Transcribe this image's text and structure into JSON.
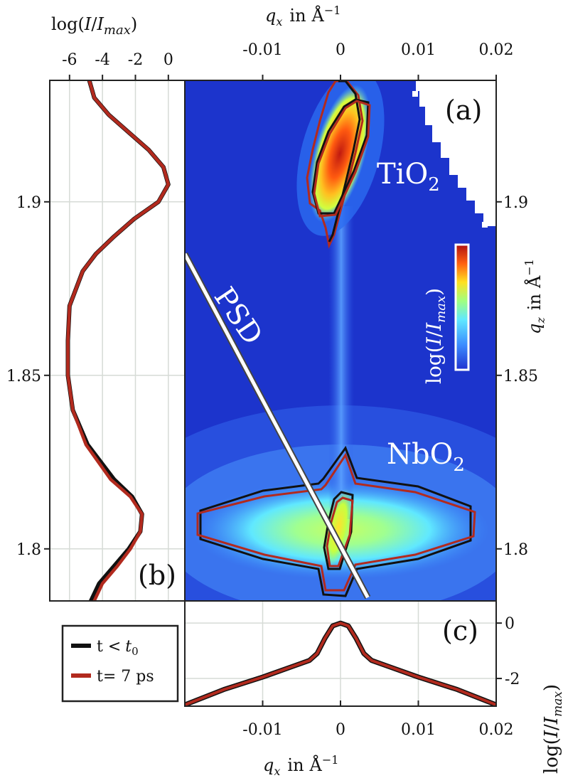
{
  "chart_data": [
    {
      "panel": "(a)",
      "type": "heatmap",
      "description_text": {
        "title_top": "q_x in Å^-1",
        "ylabel_right": "q_z in Å^-1",
        "colorbar_label": "log(I/I_max)"
      },
      "xlabel_parts": {
        "q": "q",
        "sub": "x",
        "in": "in",
        "unit": "Å",
        "exp": "−1"
      },
      "ylabel_parts": {
        "q": "q",
        "sub": "z",
        "in": "in",
        "unit": "Å",
        "exp": "−1"
      },
      "colorbar_parts": {
        "log": "log(",
        "I": "I",
        "slash": "/",
        "Imax": "I",
        "sub": "max",
        "close": ")"
      },
      "xlim": [
        -0.02,
        0.02
      ],
      "ylim": [
        1.785,
        1.935
      ],
      "x_ticks": [
        -0.01,
        0,
        0.01,
        0.02
      ],
      "x_tick_labels": [
        "-0.01",
        "0",
        "0.01",
        "0.02"
      ],
      "y_ticks": [
        1.8,
        1.85,
        1.9
      ],
      "y_tick_labels": [
        "1.8",
        "1.85",
        "1.9"
      ],
      "annotations": [
        {
          "text": "TiO",
          "sub": "2",
          "x": 0.006,
          "qz": 1.905
        },
        {
          "text": "NbO",
          "sub": "2",
          "x": 0.008,
          "qz": 1.827
        },
        {
          "text": "PSD",
          "x": -0.012,
          "qz": 1.858
        }
      ],
      "peaks": [
        {
          "name": "TiO2",
          "qx": 0.0,
          "qz": 1.908
        },
        {
          "name": "NbO2",
          "qx": 0.0,
          "qz": 1.806
        }
      ],
      "psd_line": {
        "qx_start": -0.02,
        "qz_start": 1.885,
        "qx_end": 0.0035,
        "qz_end": 1.786
      },
      "contours": [
        {
          "name": "t < t0",
          "color": "#111111"
        },
        {
          "name": "t = 7 ps",
          "color": "#b22a1e"
        }
      ]
    },
    {
      "panel": "(b)",
      "type": "line",
      "xlabel_parts": {
        "log": "log(",
        "I": "I",
        "slash": "/",
        "Imax": "I",
        "sub": "max",
        "close": ")"
      },
      "xlim": [
        -7.2,
        1.0
      ],
      "x_ticks": [
        -6,
        -4,
        -2,
        0
      ],
      "x_tick_labels": [
        "-6",
        "-4",
        "-2",
        "0"
      ],
      "ylim": [
        1.785,
        1.935
      ],
      "y_ticks": [
        1.8,
        1.85,
        1.9
      ],
      "y_tick_labels": [
        "1.8",
        "1.85",
        "1.9"
      ],
      "qz": [
        1.785,
        1.79,
        1.795,
        1.8,
        1.805,
        1.81,
        1.815,
        1.82,
        1.83,
        1.84,
        1.85,
        1.86,
        1.87,
        1.88,
        1.885,
        1.89,
        1.895,
        1.9,
        1.905,
        1.91,
        1.915,
        1.92,
        1.925,
        1.93,
        1.935
      ],
      "series": [
        {
          "name": "t < t0",
          "color": "#111111",
          "values": [
            -4.7,
            -4.2,
            -3.3,
            -2.4,
            -1.7,
            -1.6,
            -2.2,
            -3.3,
            -4.9,
            -5.8,
            -6.1,
            -6.1,
            -6.0,
            -5.2,
            -4.4,
            -3.3,
            -2.1,
            -0.6,
            0.0,
            -0.3,
            -1.2,
            -2.4,
            -3.6,
            -4.5,
            -4.8
          ]
        },
        {
          "name": "t = 7 ps",
          "color": "#b22a1e",
          "values": [
            -4.5,
            -4.0,
            -3.1,
            -2.3,
            -1.7,
            -1.6,
            -2.3,
            -3.5,
            -5.0,
            -5.8,
            -6.1,
            -6.1,
            -6.0,
            -5.2,
            -4.4,
            -3.3,
            -2.1,
            -0.6,
            0.0,
            -0.3,
            -1.2,
            -2.4,
            -3.6,
            -4.5,
            -4.8
          ]
        }
      ]
    },
    {
      "panel": "(c)",
      "type": "line",
      "xlabel_parts": {
        "q": "q",
        "sub": "x",
        "in": "in",
        "unit": "Å",
        "exp": "−1"
      },
      "ylabel_parts": {
        "log": "log(",
        "I": "I",
        "slash": "/",
        "Imax": "I",
        "sub": "max",
        "close": ")"
      },
      "xlim": [
        -0.02,
        0.02
      ],
      "x_ticks": [
        -0.01,
        0,
        0.01,
        0.02
      ],
      "x_tick_labels": [
        "-0.01",
        "0",
        "0.01",
        "0.02"
      ],
      "ylim": [
        -3.0,
        0.8
      ],
      "y_ticks": [
        -2,
        0
      ],
      "y_tick_labels": [
        "-2",
        "0"
      ],
      "x": [
        -0.02,
        -0.015,
        -0.01,
        -0.006,
        -0.004,
        -0.003,
        -0.002,
        -0.001,
        0.0,
        0.001,
        0.002,
        0.003,
        0.004,
        0.006,
        0.01,
        0.015,
        0.02
      ],
      "series": [
        {
          "name": "t < t0",
          "color": "#111111",
          "values": [
            -2.95,
            -2.4,
            -1.95,
            -1.55,
            -1.35,
            -1.1,
            -0.55,
            -0.1,
            0.0,
            -0.1,
            -0.55,
            -1.1,
            -1.35,
            -1.55,
            -1.95,
            -2.4,
            -2.95
          ]
        },
        {
          "name": "t = 7 ps",
          "color": "#b22a1e",
          "values": [
            -2.95,
            -2.4,
            -1.95,
            -1.55,
            -1.35,
            -1.1,
            -0.55,
            -0.1,
            0.0,
            -0.1,
            -0.55,
            -1.1,
            -1.35,
            -1.55,
            -1.95,
            -2.4,
            -2.95
          ]
        }
      ]
    }
  ],
  "legend": {
    "items": [
      {
        "label_prefix": "t <",
        "label_var": "t",
        "label_sub": "0",
        "color": "#111111"
      },
      {
        "label_prefix": "t= 7 ps",
        "color": "#b22a1e"
      }
    ]
  }
}
